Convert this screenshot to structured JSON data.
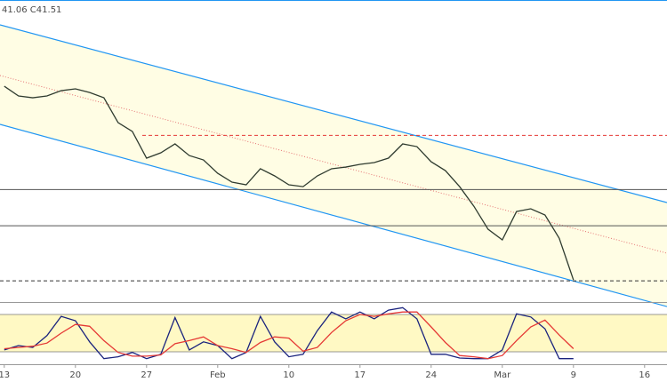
{
  "chart_data": [
    {
      "type": "line",
      "header": "41.06  C41.51",
      "xlim": [
        -0.3,
        46.575
      ],
      "xticks": [
        {
          "value": 0,
          "label": "13"
        },
        {
          "value": 5,
          "label": "20"
        },
        {
          "value": 10,
          "label": "27"
        },
        {
          "value": 15,
          "label": "Feb"
        },
        {
          "value": 20,
          "label": "10"
        },
        {
          "value": 25,
          "label": "17"
        },
        {
          "value": 30,
          "label": "24"
        },
        {
          "value": 35,
          "label": "Mar"
        },
        {
          "value": 40,
          "label": "9"
        },
        {
          "value": 45,
          "label": "16"
        }
      ],
      "ylim": [
        39.55,
        66.27
      ],
      "color": "#2f3b2f",
      "values": [
        58.64,
        57.78,
        57.62,
        57.78,
        58.25,
        58.41,
        58.09,
        57.62,
        55.42,
        54.64,
        52.28,
        52.75,
        53.54,
        52.51,
        52.12,
        50.94,
        50.16,
        49.92,
        51.34,
        50.71,
        49.92,
        49.76,
        50.71,
        51.34,
        51.49,
        51.73,
        51.89,
        52.28,
        53.54,
        53.3,
        51.96,
        51.18,
        49.76,
        48.03,
        45.99,
        45.05,
        47.56,
        47.8,
        47.25,
        45.2,
        41.51
      ],
      "channel": {
        "upper": [
          64.07,
          48.35
        ],
        "middle": [
          59.59,
          43.87
        ],
        "lower": [
          55.27,
          39.15
        ],
        "color": "#2196f3",
        "middle_color": "#e57373",
        "fill": "#fffde4"
      },
      "levels": [
        {
          "value": 54.3,
          "from": 9.7,
          "color": "#e53935",
          "dashed": true
        },
        {
          "value": 49.5,
          "from": -0.3,
          "color": "#555555",
          "dashed": false
        },
        {
          "value": 46.3,
          "from": -0.3,
          "color": "#555555",
          "dashed": false
        },
        {
          "value": 41.43,
          "from": -0.3,
          "color": "#333333",
          "dashed": true
        }
      ]
    },
    {
      "type": "line",
      "ylim": [
        0,
        100
      ],
      "band": [
        20,
        80
      ],
      "band_fill": "#fff9c4",
      "series": [
        {
          "color": "#1a237e",
          "values": [
            23,
            30,
            27,
            46,
            77,
            70,
            36,
            9,
            12,
            19,
            9,
            16,
            75,
            23,
            36,
            30,
            9,
            19,
            77,
            36,
            12,
            16,
            54,
            84,
            73,
            84,
            73,
            87,
            91,
            73,
            16,
            16,
            10,
            9,
            9,
            23,
            81,
            76,
            57,
            9,
            9
          ]
        },
        {
          "color": "#e53935",
          "values": [
            25,
            27,
            29,
            34,
            50,
            64,
            61,
            38,
            19,
            13,
            13,
            15,
            33,
            38,
            44,
            30,
            25,
            19,
            35,
            44,
            42,
            21,
            27,
            51,
            70,
            80,
            77,
            81,
            84,
            84,
            60,
            35,
            14,
            12,
            9,
            14,
            38,
            60,
            71,
            47,
            25
          ]
        }
      ]
    }
  ]
}
